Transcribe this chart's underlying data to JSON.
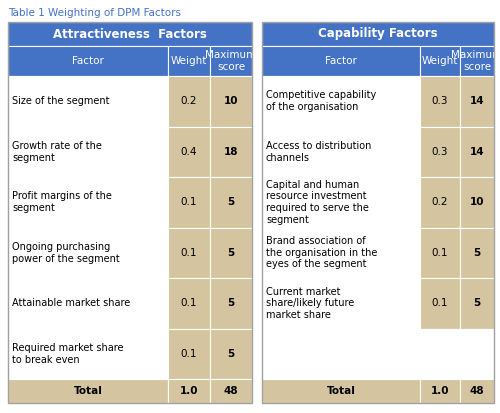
{
  "title": "Table 1 Weighting of DPM Factors",
  "title_color": "#4472C4",
  "header1": "Attractiveness  Factors",
  "header2": "Capability Factors",
  "header_bg": "#4472C4",
  "header_text_color": "#FFFFFF",
  "cell_bg_tan": "#D4C5A0",
  "cell_bg_white": "#FFFFFF",
  "border_color": "#FFFFFF",
  "outer_border_color": "#A0A0A0",
  "left_table": {
    "subheaders": [
      "Factor",
      "Weight",
      "Maximum\nscore"
    ],
    "rows": [
      {
        "factor": "Size of the segment",
        "weight": "0.2",
        "score": "10"
      },
      {
        "factor": "Growth rate of the\nsegment",
        "weight": "0.4",
        "score": "18"
      },
      {
        "factor": "Profit margins of the\nsegment",
        "weight": "0.1",
        "score": "5"
      },
      {
        "factor": "Ongoing purchasing\npower of the segment",
        "weight": "0.1",
        "score": "5"
      },
      {
        "factor": "Attainable market share",
        "weight": "0.1",
        "score": "5"
      },
      {
        "factor": "Required market share\nto break even",
        "weight": "0.1",
        "score": "5"
      }
    ],
    "total": [
      "Total",
      "1.0",
      "48"
    ]
  },
  "right_table": {
    "subheaders": [
      "Factor",
      "Weight",
      "Maximum\nscore"
    ],
    "rows": [
      {
        "factor": "Competitive capability\nof the organisation",
        "weight": "0.3",
        "score": "14"
      },
      {
        "factor": "Access to distribution\nchannels",
        "weight": "0.3",
        "score": "14"
      },
      {
        "factor": "Capital and human\nresource investment\nrequired to serve the\nsegment",
        "weight": "0.2",
        "score": "10"
      },
      {
        "factor": "Brand association of\nthe organisation in the\neyes of the segment",
        "weight": "0.1",
        "score": "5"
      },
      {
        "factor": "Current market\nshare/likely future\nmarket share",
        "weight": "0.1",
        "score": "5"
      },
      {
        "factor": "",
        "weight": "",
        "score": ""
      }
    ],
    "total": [
      "Total",
      "1.0",
      "48"
    ]
  },
  "fig_w": 5.0,
  "fig_h": 4.13,
  "dpi": 100
}
